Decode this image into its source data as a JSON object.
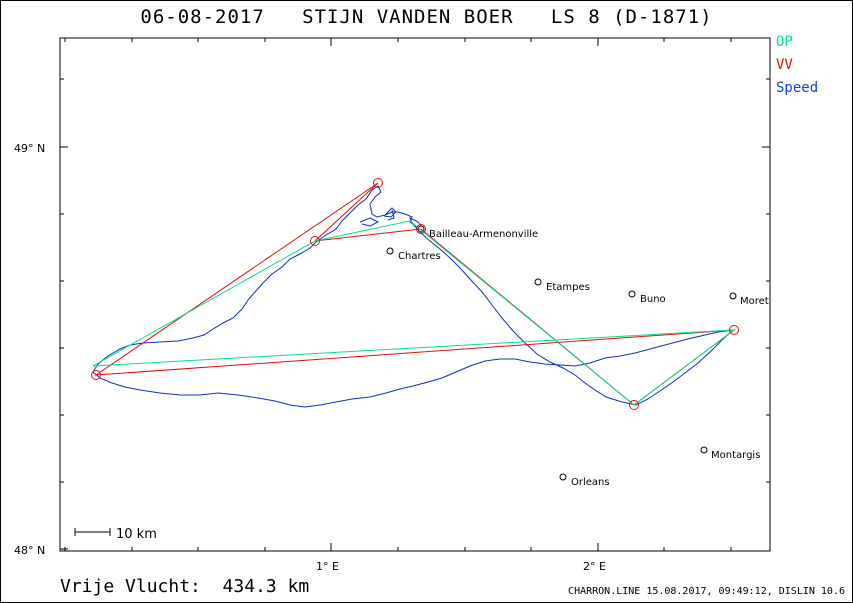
{
  "title": "06-08-2017   STIJN VANDEN BOER   LS 8 (D-1871)",
  "legend": [
    {
      "label": "OP",
      "color": "#00e08a"
    },
    {
      "label": "VV",
      "color": "#e01010"
    },
    {
      "label": "Speed",
      "color": "#1040e0"
    }
  ],
  "axes": {
    "y_ticks": [
      "49° N",
      "48° N"
    ],
    "x_ticks": [
      "1° E",
      "2° E"
    ]
  },
  "scale_bar": "10 km",
  "cities": [
    "Bailleau-Armenonville",
    "Chartres",
    "Etampes",
    "Buno",
    "Moret",
    "Montargis",
    "Orleans"
  ],
  "footer": {
    "distance": "Vrije Vlucht:  434.3 km",
    "info": "CHARRON.LINE 15.08.2017, 09:49:12, DISLIN 10.6"
  },
  "colors": {
    "op": "#00e08a",
    "vv": "#e01010",
    "track": "#1030c0",
    "frame": "#000000"
  }
}
